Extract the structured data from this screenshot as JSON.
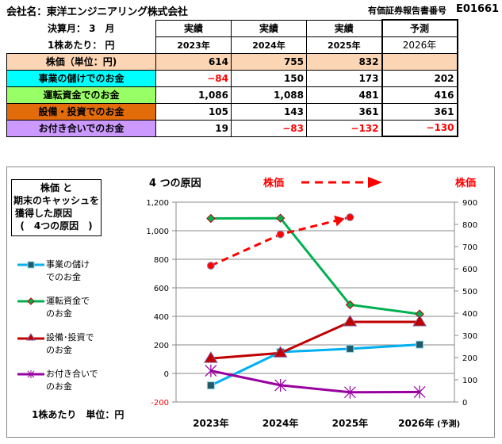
{
  "header": {
    "company_label": "会社名：東洋エンジニアリング株式会社",
    "doc_number_label": "有価証券報告書番号",
    "doc_number": "E01661"
  },
  "table": {
    "fiscal_month_label": "決算月： 3　月",
    "per_share_label": "1株あたり： 円",
    "columns": [
      {
        "type": "実績",
        "year": "2023年"
      },
      {
        "type": "実績",
        "year": "2024年"
      },
      {
        "type": "実績",
        "year": "2025年"
      },
      {
        "type": "予測",
        "year": "2026年"
      }
    ],
    "rows": [
      {
        "label": "株価（単位：円)",
        "values": [
          "614",
          "755",
          "832",
          ""
        ]
      },
      {
        "label": "事業の儲けでのお金",
        "values": [
          "−84",
          "150",
          "173",
          "202"
        ]
      },
      {
        "label": "運転資金でのお金",
        "values": [
          "1,086",
          "1,088",
          "481",
          "416"
        ]
      },
      {
        "label": "設備・投資でのお金",
        "values": [
          "105",
          "143",
          "361",
          "361"
        ]
      },
      {
        "label": "お付き合いでのお金",
        "values": [
          "19",
          "−83",
          "−132",
          "−130"
        ]
      }
    ],
    "colors": {
      "price": "#fcd5b4",
      "operating": "#00ffff",
      "working_capital": "#99ff66",
      "investment": "#e26b0a",
      "financing": "#cc99ff",
      "negative": "#ff0000"
    }
  },
  "chart_data": {
    "type": "line",
    "title_box": [
      "株価 と",
      "期末のキャッシュを",
      "獲得した原因",
      "(　4つの原因　)"
    ],
    "subtitle": "4 つの原因",
    "price_label_left": "株価",
    "price_label_right": "株価",
    "unit_label": "1株あたり　単位：円",
    "categories": [
      "2023年",
      "2024年",
      "2025年",
      "2026年"
    ],
    "category_suffix_last": "(予測)",
    "left_axis": {
      "min": -200,
      "max": 1200,
      "step": 200,
      "ticks": [
        "-200",
        "0",
        "200",
        "400",
        "600",
        "800",
        "1,000",
        "1,200"
      ]
    },
    "right_axis": {
      "min": 0,
      "max": 900,
      "step": 100,
      "ticks": [
        "0",
        "100",
        "200",
        "300",
        "400",
        "500",
        "600",
        "700",
        "800",
        "900"
      ]
    },
    "grid": true,
    "legend_position": "left",
    "series": [
      {
        "name": "事業の儲けでのお金",
        "legend": [
          "事業の儲け",
          "でのお金"
        ],
        "axis": "left",
        "color": "#00b0f0",
        "marker": "square",
        "values": [
          -84,
          150,
          173,
          202
        ]
      },
      {
        "name": "運転資金でのお金",
        "legend": [
          "運転資金で",
          "のお金"
        ],
        "axis": "left",
        "color": "#00b050",
        "marker": "diamond",
        "values": [
          1086,
          1088,
          481,
          416
        ]
      },
      {
        "name": "設備・投資でのお金",
        "legend": [
          "設備･投資で",
          "のお金"
        ],
        "axis": "left",
        "color": "#c00000",
        "marker": "triangle",
        "values": [
          105,
          143,
          361,
          361
        ]
      },
      {
        "name": "お付き合いでのお金",
        "legend": [
          "お付き合いで",
          "のお金"
        ],
        "axis": "left",
        "color": "#9900a0",
        "marker": "star",
        "values": [
          19,
          -83,
          -132,
          -130
        ]
      },
      {
        "name": "株価",
        "axis": "right",
        "color": "#ff0000",
        "marker": "circle",
        "dashed": true,
        "values": [
          614,
          755,
          832,
          null
        ]
      }
    ]
  }
}
